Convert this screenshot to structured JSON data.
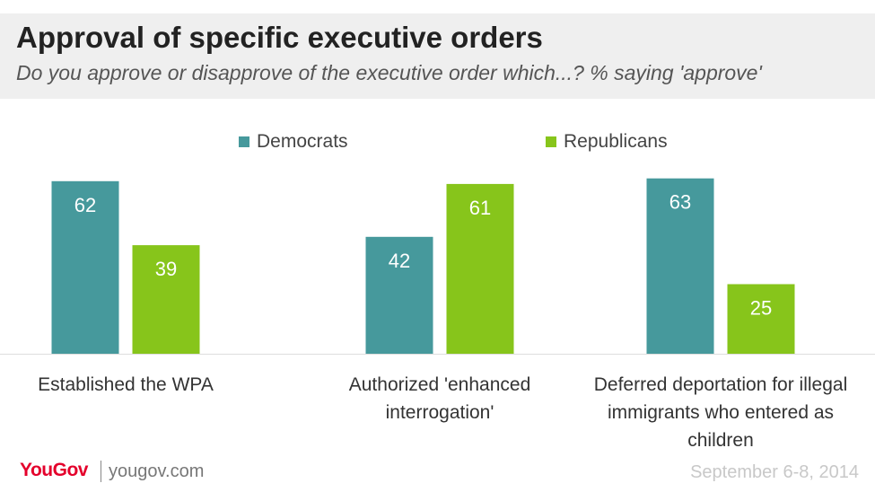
{
  "header": {
    "title": "Approval of specific executive orders",
    "subtitle": "Do you approve or disapprove of the executive order which...? % saying 'approve'"
  },
  "footer": {
    "logo": "YouGov",
    "site": "yougov.com",
    "date": "September 6-8, 2014"
  },
  "colors": {
    "democrats": "#46999c",
    "republicans": "#87c51b",
    "header_bg": "#efefef"
  },
  "chart_data": {
    "type": "bar",
    "categories": [
      [
        "Established the WPA"
      ],
      [
        "Authorized 'enhanced",
        "interrogation'"
      ],
      [
        "Deferred deportation for illegal",
        "immigrants who entered as",
        "children"
      ]
    ],
    "series": [
      {
        "name": "Democrats",
        "values": [
          62,
          42,
          63
        ]
      },
      {
        "name": "Republicans",
        "values": [
          39,
          61,
          25
        ]
      }
    ],
    "ylim": [
      0,
      70
    ],
    "grid": false,
    "legend_position": "top-center",
    "data_labels": true
  }
}
